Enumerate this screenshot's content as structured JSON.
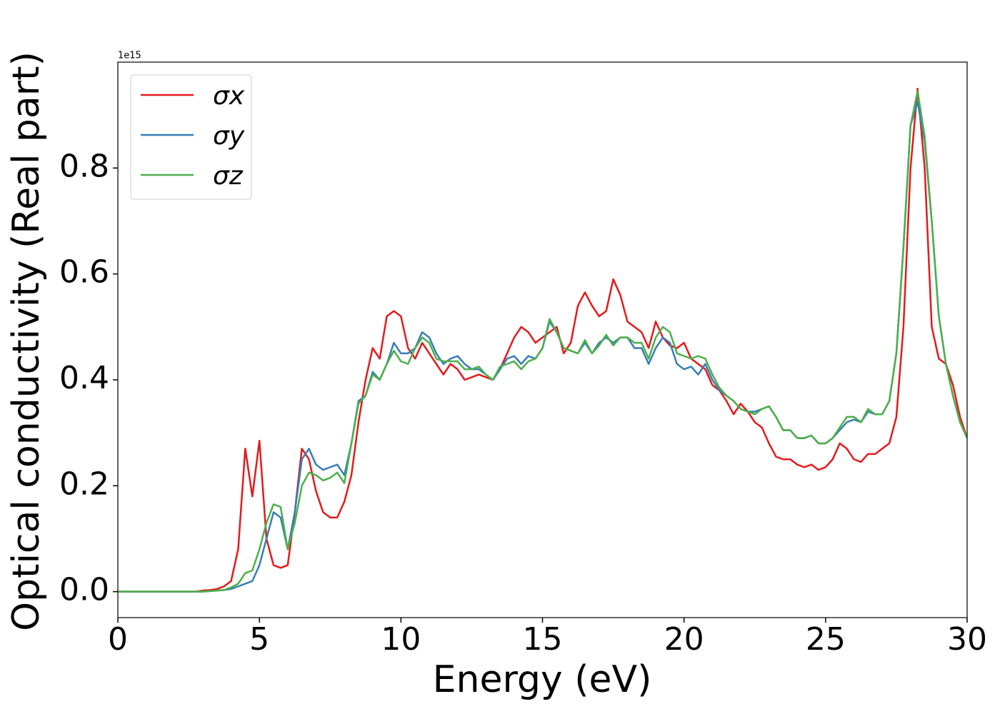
{
  "chart_data": {
    "type": "line",
    "xlabel": "Energy (eV)",
    "ylabel": "Optical conductivity (Real part)",
    "y_offset_label": "1e15",
    "x": [
      0,
      0.25,
      0.5,
      0.75,
      1,
      1.25,
      1.5,
      1.75,
      2,
      2.25,
      2.5,
      2.75,
      3,
      3.25,
      3.5,
      3.75,
      4,
      4.25,
      4.5,
      4.75,
      5,
      5.25,
      5.5,
      5.75,
      6,
      6.25,
      6.5,
      6.75,
      7,
      7.25,
      7.5,
      7.75,
      8,
      8.25,
      8.5,
      8.75,
      9,
      9.25,
      9.5,
      9.75,
      10,
      10.25,
      10.5,
      10.75,
      11,
      11.25,
      11.5,
      11.75,
      12,
      12.25,
      12.5,
      12.75,
      13,
      13.25,
      13.5,
      13.75,
      14,
      14.25,
      14.5,
      14.75,
      15,
      15.25,
      15.5,
      15.75,
      16,
      16.25,
      16.5,
      16.75,
      17,
      17.25,
      17.5,
      17.75,
      18,
      18.25,
      18.5,
      18.75,
      19,
      19.25,
      19.5,
      19.75,
      20,
      20.25,
      20.5,
      20.75,
      21,
      21.25,
      21.5,
      21.75,
      22,
      22.25,
      22.5,
      22.75,
      23,
      23.25,
      23.5,
      23.75,
      24,
      24.25,
      24.5,
      24.75,
      25,
      25.25,
      25.5,
      25.75,
      26,
      26.25,
      26.5,
      26.75,
      27,
      27.25,
      27.5,
      27.75,
      28,
      28.25,
      28.5,
      28.75,
      29,
      29.25,
      29.5,
      29.75,
      30
    ],
    "series": [
      {
        "name": "σx",
        "color": "#e41a1c",
        "values": [
          0,
          0,
          0,
          0,
          0,
          0,
          0,
          0,
          0,
          0,
          0,
          0,
          0.002,
          0.003,
          0.005,
          0.01,
          0.02,
          0.08,
          0.27,
          0.18,
          0.285,
          0.1,
          0.05,
          0.045,
          0.05,
          0.15,
          0.27,
          0.25,
          0.19,
          0.15,
          0.14,
          0.14,
          0.17,
          0.22,
          0.32,
          0.4,
          0.46,
          0.44,
          0.52,
          0.53,
          0.52,
          0.46,
          0.44,
          0.47,
          0.45,
          0.43,
          0.41,
          0.43,
          0.42,
          0.4,
          0.405,
          0.41,
          0.405,
          0.4,
          0.42,
          0.45,
          0.48,
          0.5,
          0.49,
          0.47,
          0.48,
          0.49,
          0.5,
          0.45,
          0.47,
          0.54,
          0.565,
          0.54,
          0.52,
          0.53,
          0.59,
          0.56,
          0.51,
          0.5,
          0.49,
          0.46,
          0.51,
          0.48,
          0.465,
          0.46,
          0.47,
          0.44,
          0.43,
          0.42,
          0.39,
          0.38,
          0.36,
          0.335,
          0.355,
          0.34,
          0.32,
          0.31,
          0.28,
          0.255,
          0.25,
          0.25,
          0.24,
          0.235,
          0.24,
          0.23,
          0.235,
          0.25,
          0.28,
          0.27,
          0.25,
          0.245,
          0.26,
          0.26,
          0.27,
          0.28,
          0.33,
          0.5,
          0.8,
          0.95,
          0.8,
          0.5,
          0.44,
          0.43,
          0.39,
          0.33,
          0.29
        ]
      },
      {
        "name": "σy",
        "color": "#377eb8",
        "values": [
          0,
          0,
          0,
          0,
          0,
          0,
          0,
          0,
          0,
          0,
          0,
          0,
          0,
          0.001,
          0.002,
          0.003,
          0.005,
          0.01,
          0.015,
          0.02,
          0.05,
          0.1,
          0.15,
          0.14,
          0.08,
          0.15,
          0.25,
          0.27,
          0.24,
          0.23,
          0.235,
          0.24,
          0.22,
          0.28,
          0.36,
          0.37,
          0.415,
          0.4,
          0.43,
          0.47,
          0.45,
          0.45,
          0.46,
          0.49,
          0.48,
          0.45,
          0.43,
          0.44,
          0.445,
          0.43,
          0.42,
          0.42,
          0.41,
          0.4,
          0.42,
          0.44,
          0.445,
          0.43,
          0.445,
          0.44,
          0.46,
          0.51,
          0.49,
          0.46,
          0.455,
          0.45,
          0.47,
          0.45,
          0.47,
          0.48,
          0.47,
          0.48,
          0.48,
          0.46,
          0.46,
          0.43,
          0.46,
          0.48,
          0.47,
          0.43,
          0.42,
          0.425,
          0.41,
          0.43,
          0.4,
          0.38,
          0.37,
          0.36,
          0.345,
          0.34,
          0.34,
          0.345,
          0.35,
          0.33,
          0.305,
          0.305,
          0.29,
          0.29,
          0.295,
          0.28,
          0.28,
          0.29,
          0.305,
          0.32,
          0.325,
          0.32,
          0.34,
          0.335,
          0.335,
          0.36,
          0.45,
          0.65,
          0.88,
          0.925,
          0.85,
          0.7,
          0.52,
          0.43,
          0.37,
          0.32,
          0.29
        ]
      },
      {
        "name": "σz",
        "color": "#4daf4a",
        "values": [
          0,
          0,
          0,
          0,
          0,
          0,
          0,
          0,
          0,
          0,
          0,
          0,
          0,
          0.001,
          0.002,
          0.003,
          0.008,
          0.015,
          0.035,
          0.04,
          0.08,
          0.13,
          0.165,
          0.16,
          0.08,
          0.13,
          0.2,
          0.225,
          0.22,
          0.21,
          0.215,
          0.225,
          0.205,
          0.28,
          0.355,
          0.37,
          0.41,
          0.4,
          0.43,
          0.455,
          0.435,
          0.43,
          0.46,
          0.48,
          0.47,
          0.44,
          0.435,
          0.435,
          0.435,
          0.42,
          0.42,
          0.425,
          0.41,
          0.4,
          0.425,
          0.43,
          0.435,
          0.42,
          0.435,
          0.44,
          0.46,
          0.515,
          0.49,
          0.46,
          0.455,
          0.45,
          0.475,
          0.45,
          0.465,
          0.485,
          0.465,
          0.48,
          0.48,
          0.47,
          0.47,
          0.44,
          0.48,
          0.5,
          0.49,
          0.45,
          0.445,
          0.44,
          0.445,
          0.44,
          0.41,
          0.385,
          0.37,
          0.36,
          0.345,
          0.34,
          0.335,
          0.345,
          0.35,
          0.33,
          0.305,
          0.305,
          0.29,
          0.29,
          0.295,
          0.28,
          0.28,
          0.29,
          0.31,
          0.33,
          0.33,
          0.32,
          0.345,
          0.335,
          0.335,
          0.36,
          0.45,
          0.65,
          0.88,
          0.945,
          0.86,
          0.7,
          0.52,
          0.43,
          0.37,
          0.32,
          0.29
        ]
      }
    ],
    "xlim": [
      0,
      30
    ],
    "xticks": [
      0,
      5,
      10,
      15,
      20,
      25,
      30
    ],
    "ylim": [
      -0.049,
      1.0
    ],
    "yticks": [
      {
        "value": 0,
        "label": "0.0"
      },
      0.2,
      0.4,
      0.6,
      0.8
    ],
    "legend": "upper left",
    "grid": false
  }
}
